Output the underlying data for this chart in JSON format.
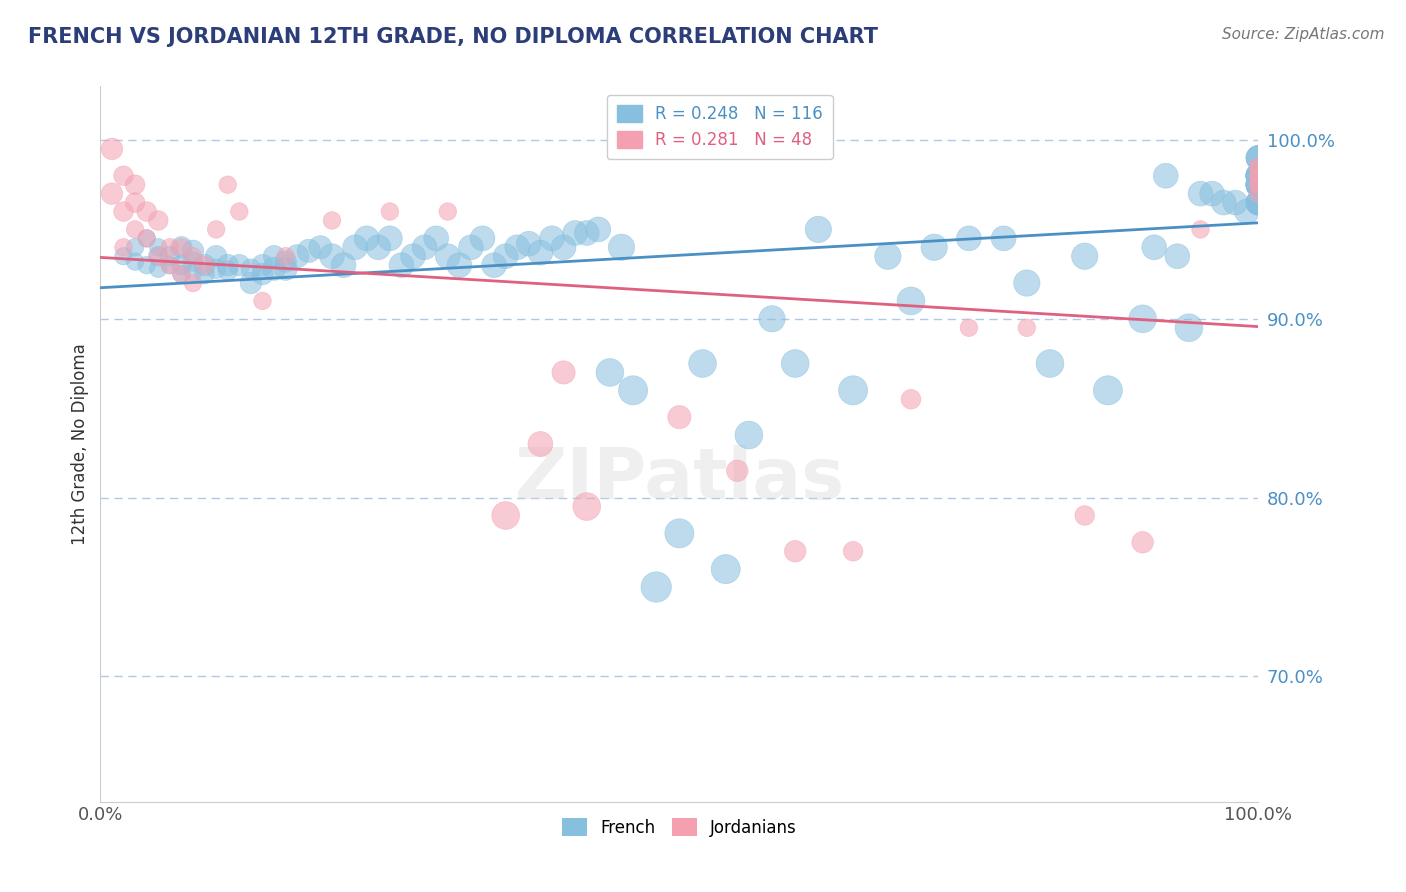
{
  "title": "FRENCH VS JORDANIAN 12TH GRADE, NO DIPLOMA CORRELATION CHART",
  "source": "Source: ZipAtlas.com",
  "ylabel": "12th Grade, No Diploma",
  "ylim": [
    0.63,
    1.03
  ],
  "xlim": [
    0.0,
    1.0
  ],
  "french_R": 0.248,
  "french_N": 116,
  "jordanian_R": 0.281,
  "jordanian_N": 48,
  "french_color": "#87BFDE",
  "jordanian_color": "#F4A0B0",
  "french_line_color": "#4a90c4",
  "jordanian_line_color": "#e06080",
  "background_color": "#ffffff",
  "title_color": "#2c3e7a",
  "source_color": "#777777",
  "axis_label_color": "#333333",
  "ytick_color": "#4a90c4",
  "grid_color": "#b0c8e8",
  "french_x": [
    0.02,
    0.03,
    0.03,
    0.04,
    0.04,
    0.05,
    0.05,
    0.05,
    0.06,
    0.06,
    0.07,
    0.07,
    0.07,
    0.08,
    0.08,
    0.08,
    0.09,
    0.09,
    0.1,
    0.1,
    0.11,
    0.11,
    0.12,
    0.13,
    0.13,
    0.14,
    0.14,
    0.15,
    0.15,
    0.16,
    0.16,
    0.17,
    0.18,
    0.19,
    0.2,
    0.21,
    0.22,
    0.23,
    0.24,
    0.25,
    0.26,
    0.27,
    0.28,
    0.29,
    0.3,
    0.31,
    0.32,
    0.33,
    0.34,
    0.35,
    0.36,
    0.37,
    0.38,
    0.39,
    0.4,
    0.41,
    0.42,
    0.43,
    0.44,
    0.45,
    0.46,
    0.48,
    0.5,
    0.52,
    0.54,
    0.56,
    0.58,
    0.6,
    0.62,
    0.65,
    0.68,
    0.7,
    0.72,
    0.75,
    0.78,
    0.8,
    0.82,
    0.85,
    0.87,
    0.9,
    0.91,
    0.92,
    0.93,
    0.94,
    0.95,
    0.96,
    0.97,
    0.98,
    0.99,
    1.0,
    1.0,
    1.0,
    1.0,
    1.0,
    1.0,
    1.0,
    1.0,
    1.0,
    1.0,
    1.0,
    1.0,
    1.0,
    1.0,
    1.0,
    1.0,
    1.0,
    1.0,
    1.0,
    1.0,
    1.0,
    1.0,
    1.0,
    1.0,
    1.0,
    1.0,
    1.0
  ],
  "french_y": [
    0.935,
    0.94,
    0.932,
    0.945,
    0.93,
    0.94,
    0.935,
    0.928,
    0.935,
    0.93,
    0.94,
    0.93,
    0.925,
    0.938,
    0.932,
    0.926,
    0.93,
    0.925,
    0.935,
    0.928,
    0.93,
    0.927,
    0.93,
    0.92,
    0.928,
    0.93,
    0.925,
    0.928,
    0.935,
    0.928,
    0.932,
    0.935,
    0.938,
    0.94,
    0.935,
    0.93,
    0.94,
    0.945,
    0.94,
    0.945,
    0.93,
    0.935,
    0.94,
    0.945,
    0.935,
    0.93,
    0.94,
    0.945,
    0.93,
    0.935,
    0.94,
    0.942,
    0.937,
    0.945,
    0.94,
    0.948,
    0.948,
    0.95,
    0.87,
    0.94,
    0.86,
    0.75,
    0.78,
    0.875,
    0.76,
    0.835,
    0.9,
    0.875,
    0.95,
    0.86,
    0.935,
    0.91,
    0.94,
    0.945,
    0.945,
    0.92,
    0.875,
    0.935,
    0.86,
    0.9,
    0.94,
    0.98,
    0.935,
    0.895,
    0.97,
    0.97,
    0.965,
    0.965,
    0.96,
    0.98,
    0.98,
    0.975,
    0.975,
    0.98,
    0.965,
    0.98,
    0.98,
    0.975,
    0.975,
    0.98,
    0.99,
    0.975,
    0.975,
    0.965,
    0.975,
    0.98,
    0.98,
    0.98,
    0.98,
    0.99,
    0.975,
    0.965,
    0.98,
    0.99,
    0.965,
    0.975
  ],
  "french_sizes": [
    20,
    20,
    20,
    20,
    20,
    20,
    25,
    20,
    25,
    20,
    30,
    25,
    20,
    30,
    25,
    20,
    30,
    25,
    30,
    25,
    30,
    25,
    30,
    30,
    25,
    30,
    30,
    35,
    30,
    35,
    30,
    35,
    35,
    35,
    40,
    40,
    40,
    40,
    40,
    40,
    40,
    40,
    40,
    40,
    40,
    40,
    40,
    40,
    40,
    40,
    40,
    40,
    40,
    40,
    40,
    40,
    40,
    40,
    50,
    45,
    55,
    60,
    55,
    50,
    55,
    50,
    45,
    50,
    45,
    55,
    45,
    50,
    45,
    40,
    40,
    45,
    50,
    45,
    55,
    50,
    40,
    40,
    40,
    50,
    40,
    40,
    40,
    40,
    40,
    40,
    40,
    40,
    40,
    40,
    40,
    40,
    40,
    40,
    40,
    40,
    40,
    40,
    40,
    40,
    40,
    40,
    40,
    40,
    40,
    40,
    40,
    40,
    40,
    40,
    40,
    40
  ],
  "jordanian_x": [
    0.01,
    0.01,
    0.02,
    0.02,
    0.02,
    0.03,
    0.03,
    0.03,
    0.04,
    0.04,
    0.05,
    0.05,
    0.06,
    0.06,
    0.07,
    0.07,
    0.08,
    0.08,
    0.09,
    0.1,
    0.11,
    0.12,
    0.14,
    0.16,
    0.2,
    0.25,
    0.3,
    0.35,
    0.38,
    0.4,
    0.42,
    0.5,
    0.55,
    0.6,
    0.65,
    0.7,
    0.75,
    0.8,
    0.85,
    0.9,
    0.95,
    1.0,
    1.0,
    1.0,
    1.0,
    1.0,
    1.0,
    1.0
  ],
  "jordanian_y": [
    0.995,
    0.97,
    0.98,
    0.96,
    0.94,
    0.975,
    0.965,
    0.95,
    0.96,
    0.945,
    0.955,
    0.935,
    0.94,
    0.93,
    0.94,
    0.925,
    0.935,
    0.92,
    0.93,
    0.95,
    0.975,
    0.96,
    0.91,
    0.935,
    0.955,
    0.96,
    0.96,
    0.79,
    0.83,
    0.87,
    0.795,
    0.845,
    0.815,
    0.77,
    0.77,
    0.855,
    0.895,
    0.895,
    0.79,
    0.775,
    0.95,
    0.97,
    0.975,
    0.985,
    0.985,
    0.98,
    0.98,
    0.975
  ],
  "jordanian_sizes": [
    30,
    30,
    25,
    25,
    20,
    25,
    25,
    20,
    25,
    20,
    25,
    20,
    20,
    20,
    20,
    20,
    20,
    20,
    20,
    20,
    20,
    20,
    20,
    20,
    20,
    20,
    20,
    50,
    40,
    35,
    50,
    35,
    30,
    30,
    25,
    25,
    20,
    20,
    25,
    30,
    20,
    20,
    20,
    20,
    20,
    20,
    20,
    20
  ]
}
